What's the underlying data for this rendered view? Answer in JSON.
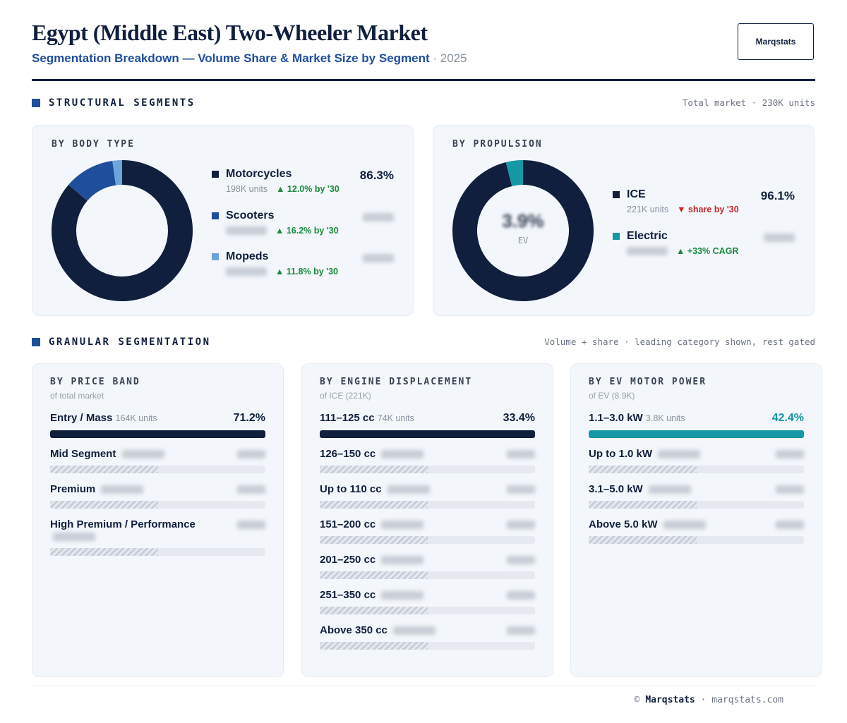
{
  "header": {
    "title": "Egypt (Middle East) Two-Wheeler Market",
    "subtitle": "Segmentation Breakdown — Volume Share & Market Size by Segment",
    "year": "2025",
    "logo": "Marqstats"
  },
  "structural": {
    "label": "STRUCTURAL SEGMENTS",
    "note": "Total market · 230K units",
    "panels": [
      {
        "title": "BY BODY TYPE",
        "items": [
          {
            "name": "Motorcycles",
            "color": "#0f1f3d",
            "value": 86.3,
            "value_label": "86.3%",
            "units": "198K units",
            "trend": "▲ 12.0% by '30",
            "trend_dir": "up"
          },
          {
            "name": "Scooters",
            "color": "#1f4e9c",
            "value": 11.5,
            "trend": "▲ 16.2% by '30",
            "trend_dir": "up"
          },
          {
            "name": "Mopeds",
            "color": "#6da4dc",
            "value": 2.2,
            "trend": "▲ 11.8% by '30",
            "trend_dir": "up"
          }
        ]
      },
      {
        "title": "BY PROPULSION",
        "center_label": "3.9%",
        "center_caption": "EV",
        "items": [
          {
            "name": "ICE",
            "color": "#0f1f3d",
            "value": 96.1,
            "value_label": "96.1%",
            "units": "221K units",
            "trend": "▼ share by '30",
            "trend_dir": "down"
          },
          {
            "name": "Electric",
            "color": "#1597a5",
            "value": 3.9,
            "trend": "▲ +33% CAGR",
            "trend_dir": "up"
          }
        ]
      }
    ]
  },
  "granular": {
    "label": "GRANULAR SEGMENTATION",
    "note": "Volume + share · leading category shown, rest gated",
    "cards": [
      {
        "title": "BY PRICE BAND",
        "subtitle": "of total market",
        "color": "#0f1f3d",
        "rows": [
          {
            "name": "Entry / Mass",
            "units": "164K units",
            "share": "71.2%"
          },
          {
            "name": "Mid Segment"
          },
          {
            "name": "Premium"
          },
          {
            "name": "High Premium / Performance"
          }
        ]
      },
      {
        "title": "BY ENGINE DISPLACEMENT",
        "subtitle": "of ICE (221K)",
        "color": "#0f1f3d",
        "rows": [
          {
            "name": "111–125 cc",
            "units": "74K units",
            "share": "33.4%"
          },
          {
            "name": "126–150 cc"
          },
          {
            "name": "Up to 110 cc"
          },
          {
            "name": "151–200 cc"
          },
          {
            "name": "201–250 cc"
          },
          {
            "name": "251–350 cc"
          },
          {
            "name": "Above 350 cc"
          }
        ]
      },
      {
        "title": "BY EV MOTOR POWER",
        "subtitle": "of EV (8.9K)",
        "color": "#1597a5",
        "rows": [
          {
            "name": "1.1–3.0 kW",
            "units": "3.8K units",
            "share": "42.4%"
          },
          {
            "name": "Up to 1.0 kW"
          },
          {
            "name": "3.1–5.0 kW"
          },
          {
            "name": "Above 5.0 kW"
          }
        ]
      }
    ]
  },
  "footer": {
    "symbol": "©",
    "brand": "Marqstats",
    "site": "marqstats.com"
  }
}
